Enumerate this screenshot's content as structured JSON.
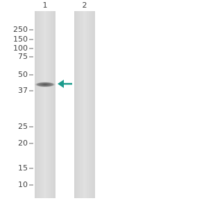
{
  "lanes": [
    {
      "label": "1"
    },
    {
      "label": "2"
    }
  ],
  "markers": [
    "250",
    "150",
    "100",
    "75",
    "50",
    "37",
    "25",
    "20",
    "15",
    "10"
  ]
}
